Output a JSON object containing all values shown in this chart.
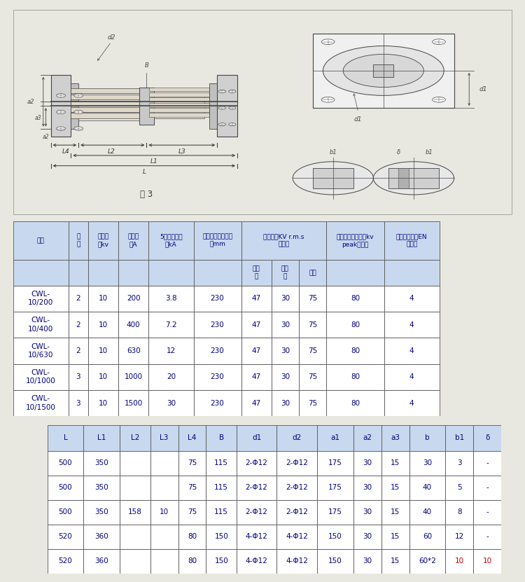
{
  "title": "图 3",
  "bg_color": "#e8e8e0",
  "drawing_bg": "#e8e8e0",
  "table1_data": [
    [
      "CWL-\n10/200",
      "2",
      "10",
      "200",
      "3.8",
      "230",
      "47",
      "30",
      "75",
      "80",
      "4"
    ],
    [
      "CWL-\n10/400",
      "2",
      "10",
      "400",
      "7.2",
      "230",
      "47",
      "30",
      "75",
      "80",
      "4"
    ],
    [
      "CWL-\n10/630",
      "2",
      "10",
      "630",
      "12",
      "230",
      "47",
      "30",
      "75",
      "80",
      "4"
    ],
    [
      "CWL-\n10/1000",
      "3",
      "10",
      "1000",
      "20",
      "230",
      "47",
      "30",
      "75",
      "80",
      "4"
    ],
    [
      "CWL-\n10/1500",
      "3",
      "10",
      "1500",
      "30",
      "230",
      "47",
      "30",
      "75",
      "80",
      "4"
    ]
  ],
  "table2_headers": [
    "L",
    "L1",
    "L2",
    "L3",
    "L4",
    "B",
    "d1",
    "d2",
    "a1",
    "a2",
    "a3",
    "b",
    "b1",
    "δ"
  ],
  "table2_data": [
    [
      "500",
      "350",
      "",
      "",
      "75",
      "115",
      "2-Φ12",
      "2-Φ12",
      "175",
      "30",
      "15",
      "30",
      "3",
      "-"
    ],
    [
      "500",
      "350",
      "",
      "",
      "75",
      "115",
      "2-Φ12",
      "2-Φ12",
      "175",
      "30",
      "15",
      "40",
      "5",
      "-"
    ],
    [
      "500",
      "350",
      "158",
      "10",
      "75",
      "115",
      "2-Φ12",
      "2-Φ12",
      "175",
      "30",
      "15",
      "40",
      "8",
      "-"
    ],
    [
      "520",
      "360",
      "",
      "",
      "80",
      "150",
      "4-Φ12",
      "4-Φ12",
      "150",
      "30",
      "15",
      "60",
      "12",
      "-"
    ],
    [
      "520",
      "360",
      "",
      "",
      "80",
      "150",
      "4-Φ12",
      "4-Φ12",
      "150",
      "30",
      "15",
      "60*2",
      "10",
      "10"
    ]
  ],
  "line_color": "#444444",
  "text_color": "#000080",
  "header_bg": "#c8d8ee",
  "cell_bg": "#ffffff"
}
